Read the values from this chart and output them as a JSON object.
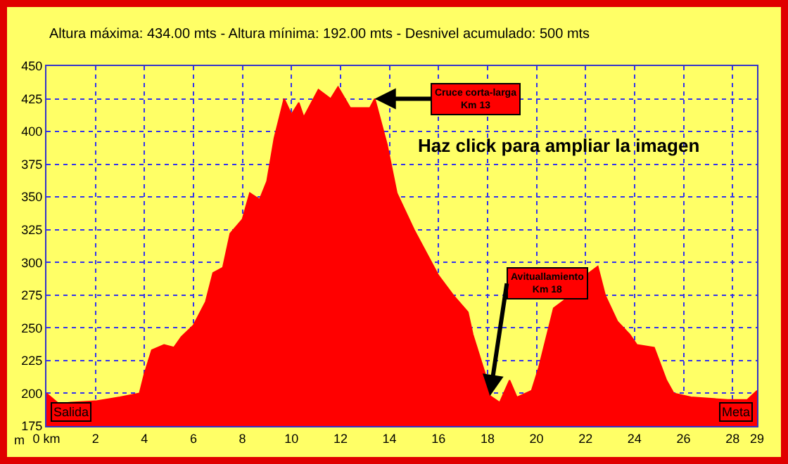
{
  "chart_data": {
    "type": "area",
    "title": "Altura máxima: 434.00 mts - Altura mínima: 192.00 mts - Desnivel acumulado: 500 mts",
    "ylabel": "m",
    "x": [
      0,
      0.5,
      1,
      2,
      3,
      3.8,
      4,
      4.3,
      4.8,
      5.2,
      5.5,
      6,
      6.5,
      6.8,
      7.2,
      7.5,
      8,
      8.3,
      8.7,
      9,
      9.3,
      9.7,
      10,
      10.3,
      10.5,
      11.1,
      11.6,
      11.9,
      12.4,
      13.2,
      13.4,
      13.9,
      14.3,
      15,
      16,
      16.6,
      17.2,
      17.4,
      17.9,
      18.1,
      18.5,
      18.9,
      19.2,
      19.8,
      20.1,
      20.7,
      21.2,
      22,
      22.5,
      22.8,
      23.3,
      23.8,
      24.1,
      24.8,
      25.3,
      25.6,
      26.3,
      27.8,
      28.6,
      29
    ],
    "series": [
      {
        "color": "#ff0000",
        "values": [
          200,
          192,
          193,
          194,
          197,
          200,
          215,
          233,
          237,
          235,
          243,
          252,
          270,
          292,
          296,
          322,
          333,
          353,
          348,
          362,
          395,
          425,
          413,
          422,
          411,
          432,
          425,
          434,
          418,
          418,
          425,
          390,
          353,
          325,
          290,
          275,
          262,
          245,
          215,
          198,
          193,
          210,
          197,
          202,
          220,
          265,
          272,
          290,
          297,
          275,
          255,
          245,
          237,
          235,
          210,
          200,
          197,
          195,
          195,
          202
        ]
      }
    ],
    "xlim": [
      0,
      29
    ],
    "ylim": [
      175,
      450
    ],
    "xticks": [
      {
        "value": 0,
        "label": "0 km"
      },
      2,
      4,
      6,
      8,
      10,
      12,
      14,
      16,
      18,
      20,
      22,
      24,
      26,
      28,
      29
    ],
    "yticks": [
      175,
      200,
      225,
      250,
      275,
      300,
      325,
      350,
      375,
      400,
      425,
      450
    ],
    "grid": true,
    "annotations": [
      {
        "text": "Cruce corta-larga\nKm 13",
        "x": 13.4,
        "y": 425
      },
      {
        "text": "Avituallamiento\nKm 18",
        "x": 18.1,
        "y": 198
      },
      "Haz click para ampliar la imagen",
      "Salida",
      "Meta"
    ]
  }
}
